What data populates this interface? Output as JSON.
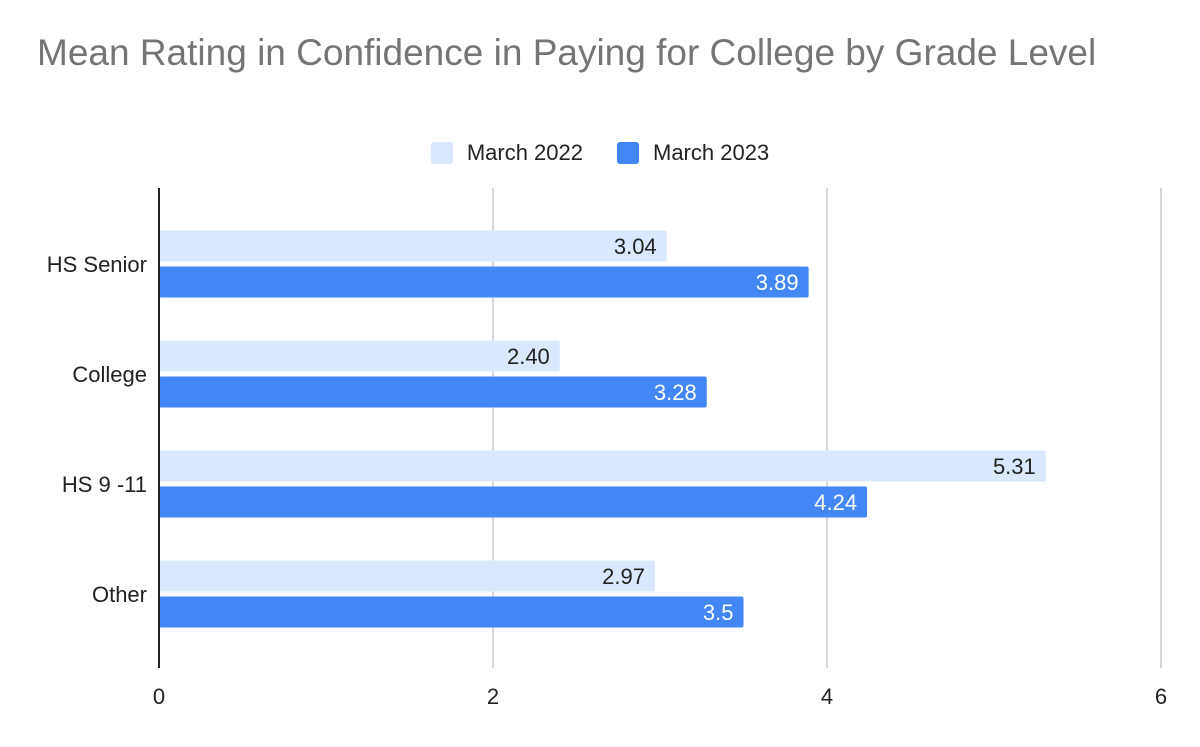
{
  "chart_data": {
    "type": "bar",
    "orientation": "horizontal",
    "title": "Mean Rating in Confidence in Paying for College by Grade Level",
    "xlabel": "",
    "ylabel": "",
    "categories": [
      "HS Senior",
      "College",
      "HS 9 -11",
      "Other"
    ],
    "series": [
      {
        "name": "March 2022",
        "values": [
          3.04,
          2.4,
          5.31,
          2.97
        ],
        "labels": [
          "3.04",
          "2.40",
          "5.31",
          "2.97"
        ],
        "color": "#d9e8fc",
        "label_color": "#222222"
      },
      {
        "name": "March 2023",
        "values": [
          3.89,
          3.28,
          4.24,
          3.5
        ],
        "labels": [
          "3.89",
          "3.28",
          "4.24",
          "3.5"
        ],
        "color": "#4287f5",
        "label_color": "#ffffff"
      }
    ],
    "xlim": [
      0,
      6
    ],
    "xticks": [
      "0",
      "2",
      "4",
      "6"
    ],
    "grid": true,
    "legend_position": "top-center",
    "colors": {
      "title": "#757575",
      "grid": "#cccccc",
      "axis": "#222222",
      "text": "#222222"
    }
  }
}
